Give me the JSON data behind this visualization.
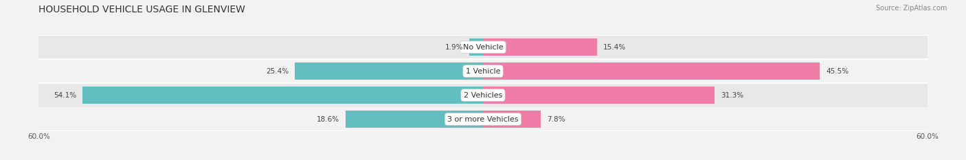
{
  "title": "HOUSEHOLD VEHICLE USAGE IN GLENVIEW",
  "source": "Source: ZipAtlas.com",
  "categories": [
    "No Vehicle",
    "1 Vehicle",
    "2 Vehicles",
    "3 or more Vehicles"
  ],
  "owner_values": [
    1.9,
    25.4,
    54.1,
    18.6
  ],
  "renter_values": [
    15.4,
    45.5,
    31.3,
    7.8
  ],
  "owner_color": "#62bec1",
  "renter_color": "#f07ca8",
  "axis_limit": 60.0,
  "background_color": "#f2f2f2",
  "row_colors": [
    "#e8e8e8",
    "#f2f2f2"
  ],
  "title_fontsize": 10,
  "source_fontsize": 7,
  "label_fontsize": 7.5,
  "category_fontsize": 8,
  "legend_fontsize": 8,
  "axis_label_fontsize": 7.5
}
